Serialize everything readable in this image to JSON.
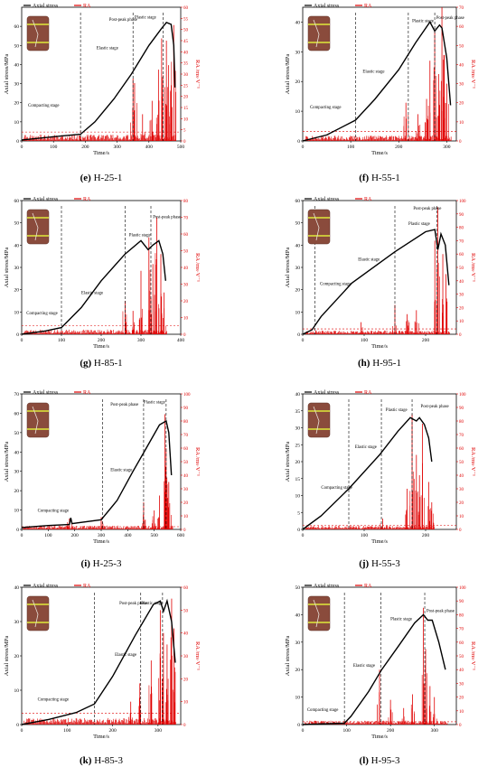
{
  "legend": {
    "stress_label": "Axial stress",
    "ra_label": "RA"
  },
  "colors": {
    "stress": "#000000",
    "ra": "#e00000",
    "threshold": "#e00000",
    "specimen_body": "#8a4b3c",
    "specimen_band": "#c9c23a"
  },
  "chart_data": [
    {
      "id": "e",
      "caption_letter": "(e)",
      "caption_name": "H-25-1",
      "type": "line",
      "xlabel": "Time/s",
      "ylabel": "Axial stress/MPa",
      "y2label": "RA /ms·V⁻¹",
      "xlim": [
        0,
        500
      ],
      "xticks": [
        0,
        100,
        200,
        300,
        400,
        500
      ],
      "ylim": [
        0,
        70
      ],
      "yticks": [
        0,
        10,
        20,
        30,
        40,
        50,
        60
      ],
      "y2lim": [
        0,
        60
      ],
      "y2ticks": [
        0,
        5,
        10,
        15,
        20,
        25,
        30,
        35,
        40,
        45,
        50,
        55,
        60
      ],
      "stress": {
        "name": "Axial stress",
        "x": [
          0,
          60,
          120,
          185,
          230,
          290,
          345,
          400,
          440,
          455,
          470,
          478,
          482
        ],
        "y": [
          0.5,
          1.5,
          2.5,
          3.5,
          10,
          22,
          35,
          50,
          59,
          62,
          61,
          50,
          28
        ]
      },
      "ra": {
        "name": "RA",
        "x_start": 5,
        "x_end": 485,
        "base": 1.5,
        "spikes": [
          [
            350,
            28
          ],
          [
            355,
            26
          ],
          [
            410,
            18
          ],
          [
            440,
            46
          ],
          [
            455,
            45
          ],
          [
            462,
            34
          ],
          [
            470,
            25
          ],
          [
            478,
            52
          ],
          [
            430,
            32
          ],
          [
            380,
            12
          ]
        ]
      },
      "threshold": 4,
      "dividers": [
        185,
        350,
        445
      ],
      "stages": [
        {
          "label": "Compacting stage",
          "x": 20,
          "y": 18
        },
        {
          "label": "Elastic stage",
          "x": 235,
          "y": 48
        },
        {
          "label": "Plastic stage",
          "x": 355,
          "y": 64
        },
        {
          "label": "Post-peak phase",
          "x": 275,
          "y": 63
        }
      ]
    },
    {
      "id": "f",
      "caption_letter": "(f)",
      "caption_name": "H-55-1",
      "type": "line",
      "xlabel": "Time/s",
      "ylabel": "Axial stress/MPa",
      "y2label": "RA /ms·V⁻¹",
      "xlim": [
        0,
        320
      ],
      "xticks": [
        0,
        100,
        200,
        300
      ],
      "ylim": [
        0,
        45
      ],
      "yticks": [
        0,
        10,
        20,
        30,
        40
      ],
      "y2lim": [
        0,
        70
      ],
      "y2ticks": [
        0,
        10,
        20,
        30,
        40,
        50,
        60,
        70
      ],
      "stress": {
        "name": "Axial stress",
        "x": [
          0,
          50,
          110,
          150,
          200,
          235,
          265,
          275,
          285,
          290,
          300,
          308
        ],
        "y": [
          0,
          2,
          7,
          14,
          24,
          33,
          40,
          37,
          39,
          38,
          28,
          12
        ]
      },
      "ra": {
        "name": "RA",
        "x_start": 5,
        "x_end": 310,
        "base": 1.5,
        "spikes": [
          [
            215,
            20
          ],
          [
            240,
            14
          ],
          [
            265,
            42
          ],
          [
            275,
            58
          ],
          [
            283,
            35
          ],
          [
            290,
            70
          ],
          [
            295,
            45
          ],
          [
            300,
            30
          ],
          [
            258,
            22
          ]
        ]
      },
      "threshold": 5,
      "dividers": [
        110,
        220,
        275
      ],
      "stages": [
        {
          "label": "Compacting stage",
          "x": 15,
          "y": 11
        },
        {
          "label": "Elastic stage",
          "x": 125,
          "y": 23
        },
        {
          "label": "Plastic stage",
          "x": 228,
          "y": 40
        },
        {
          "label": "Post-peak phase",
          "x": 278,
          "y": 41
        }
      ]
    },
    {
      "id": "g",
      "caption_letter": "(g)",
      "caption_name": "H-85-1",
      "type": "line",
      "xlabel": "Time/s",
      "ylabel": "Axial stress/MPa",
      "y2label": "RA /ms·V⁻¹",
      "xlim": [
        0,
        400
      ],
      "xticks": [
        0,
        100,
        200,
        300,
        400
      ],
      "ylim": [
        0,
        60
      ],
      "yticks": [
        0,
        10,
        20,
        30,
        40,
        50,
        60
      ],
      "y2lim": [
        0,
        80
      ],
      "y2ticks": [
        0,
        10,
        20,
        30,
        40,
        50,
        60,
        70,
        80
      ],
      "stress": {
        "name": "Axial stress",
        "x": [
          0,
          60,
          100,
          150,
          200,
          260,
          300,
          318,
          330,
          345,
          355,
          362
        ],
        "y": [
          0,
          1.5,
          3,
          12,
          24,
          36,
          42,
          38,
          40,
          42,
          36,
          24
        ]
      },
      "ra": {
        "name": "RA",
        "x_start": 5,
        "x_end": 365,
        "base": 1.5,
        "spikes": [
          [
            260,
            20
          ],
          [
            300,
            38
          ],
          [
            320,
            58
          ],
          [
            330,
            42
          ],
          [
            340,
            70
          ],
          [
            350,
            48
          ],
          [
            358,
            25
          ],
          [
            280,
            14
          ]
        ]
      },
      "threshold": 5,
      "dividers": [
        100,
        260,
        325
      ],
      "stages": [
        {
          "label": "Compacting stage",
          "x": 12,
          "y": 9
        },
        {
          "label": "Elastic stage",
          "x": 150,
          "y": 18
        },
        {
          "label": "Plastic stage",
          "x": 270,
          "y": 44
        },
        {
          "label": "Post-peak phase",
          "x": 330,
          "y": 52
        }
      ]
    },
    {
      "id": "h",
      "caption_letter": "(h)",
      "caption_name": "H-95-1",
      "type": "line",
      "xlabel": "Time/s",
      "ylabel": "Axial stress/MPa",
      "y2label": "RA /ms·V⁻¹",
      "xlim": [
        0,
        250
      ],
      "xticks": [
        0,
        100,
        200
      ],
      "ylim": [
        0,
        60
      ],
      "yticks": [
        0,
        10,
        20,
        30,
        40,
        50,
        60
      ],
      "y2lim": [
        0,
        100
      ],
      "y2ticks": [
        0,
        10,
        20,
        30,
        40,
        50,
        60,
        70,
        80,
        90,
        100
      ],
      "stress": {
        "name": "Axial stress",
        "x": [
          0,
          15,
          30,
          80,
          150,
          200,
          215,
          220,
          225,
          232,
          238
        ],
        "y": [
          0,
          2,
          8,
          23,
          37,
          46,
          47,
          38,
          45,
          40,
          22
        ]
      },
      "ra": {
        "name": "RA",
        "x_start": 5,
        "x_end": 240,
        "base": 1.5,
        "spikes": [
          [
            150,
            22
          ],
          [
            170,
            15
          ],
          [
            215,
            70
          ],
          [
            220,
            95
          ],
          [
            228,
            60
          ],
          [
            233,
            45
          ],
          [
            185,
            18
          ],
          [
            95,
            9
          ]
        ]
      },
      "threshold": 4,
      "dividers": [
        20,
        150,
        218
      ],
      "stages": [
        {
          "label": "Compacting stage",
          "x": 28,
          "y": 22
        },
        {
          "label": "Elastic stage",
          "x": 90,
          "y": 33
        },
        {
          "label": "Plastic stage",
          "x": 172,
          "y": 49
        },
        {
          "label": "Post-peak phase",
          "x": 180,
          "y": 56
        }
      ]
    },
    {
      "id": "i",
      "caption_letter": "(i)",
      "caption_name": "H-25-3",
      "type": "line",
      "xlabel": "Time/s",
      "ylabel": "Axial stress/MPa",
      "y2label": "RA /ms·V⁻¹",
      "xlim": [
        0,
        600
      ],
      "xticks": [
        0,
        100,
        200,
        300,
        400,
        500,
        600
      ],
      "ylim": [
        0,
        70
      ],
      "yticks": [
        0,
        10,
        20,
        30,
        40,
        50,
        60,
        70
      ],
      "y2lim": [
        0,
        100
      ],
      "y2ticks": [
        0,
        10,
        20,
        30,
        40,
        50,
        60,
        70,
        80,
        90,
        100
      ],
      "stress": {
        "name": "Axial stress",
        "x": [
          0,
          100,
          180,
          185,
          190,
          300,
          360,
          420,
          470,
          520,
          545,
          555,
          565
        ],
        "y": [
          1,
          2,
          2.5,
          6,
          3,
          5,
          15,
          30,
          42,
          54,
          56,
          50,
          28
        ]
      },
      "ra": {
        "name": "RA",
        "x_start": 5,
        "x_end": 570,
        "base": 1.5,
        "spikes": [
          [
            180,
            8
          ],
          [
            300,
            9
          ],
          [
            460,
            20
          ],
          [
            520,
            25
          ],
          [
            540,
            85
          ],
          [
            545,
            60
          ],
          [
            555,
            35
          ],
          [
            500,
            14
          ]
        ]
      },
      "threshold": 2,
      "dividers": [
        305,
        460,
        545
      ],
      "stages": [
        {
          "label": "Compacting stage",
          "x": 60,
          "y": 9
        },
        {
          "label": "Elastic stage",
          "x": 335,
          "y": 30
        },
        {
          "label": "Plastic stage",
          "x": 460,
          "y": 65
        },
        {
          "label": "Post-peak phase",
          "x": 335,
          "y": 64
        }
      ]
    },
    {
      "id": "j",
      "caption_letter": "(j)",
      "caption_name": "H-55-3",
      "type": "line",
      "xlabel": "Time/s",
      "ylabel": "Axial stress/MPa",
      "y2label": "RA /ms·V⁻¹",
      "xlim": [
        0,
        250
      ],
      "xticks": [
        0,
        100,
        200
      ],
      "ylim": [
        0,
        40
      ],
      "yticks": [
        0,
        5,
        10,
        15,
        20,
        25,
        30,
        35,
        40
      ],
      "y2lim": [
        0,
        100
      ],
      "y2ticks": [
        0,
        10,
        20,
        30,
        40,
        50,
        60,
        70,
        80,
        90,
        100
      ],
      "stress": {
        "name": "Axial stress",
        "x": [
          0,
          30,
          75,
          125,
          155,
          175,
          185,
          190,
          198,
          205,
          210
        ],
        "y": [
          0,
          4,
          12,
          22,
          29,
          33,
          32,
          33,
          31,
          27,
          20
        ]
      },
      "ra": {
        "name": "RA",
        "x_start": 5,
        "x_end": 215,
        "base": 1.5,
        "spikes": [
          [
            170,
            30
          ],
          [
            178,
            85
          ],
          [
            185,
            55
          ],
          [
            190,
            40
          ],
          [
            195,
            78
          ],
          [
            205,
            35
          ],
          [
            210,
            20
          ],
          [
            130,
            8
          ]
        ]
      },
      "threshold": 3,
      "dividers": [
        75,
        128,
        178
      ],
      "stages": [
        {
          "label": "Compacting stage",
          "x": 30,
          "y": 12
        },
        {
          "label": "Elastic stage",
          "x": 85,
          "y": 24
        },
        {
          "label": "Plastic stage",
          "x": 135,
          "y": 35
        },
        {
          "label": "Post-peak phase",
          "x": 192,
          "y": 36
        }
      ]
    },
    {
      "id": "k",
      "caption_letter": "(k)",
      "caption_name": "H-85-3",
      "type": "line",
      "xlabel": "Time/s",
      "ylabel": "Axial stress/MPa",
      "y2label": "RA /ms·V⁻¹",
      "xlim": [
        0,
        350
      ],
      "xticks": [
        0,
        100,
        200,
        300
      ],
      "ylim": [
        0,
        40
      ],
      "yticks": [
        0,
        10,
        20,
        30,
        40
      ],
      "y2lim": [
        0,
        60
      ],
      "y2ticks": [
        0,
        10,
        20,
        30,
        40,
        50,
        60
      ],
      "stress": {
        "name": "Axial stress",
        "x": [
          0,
          60,
          120,
          160,
          200,
          250,
          290,
          305,
          312,
          320,
          330,
          338
        ],
        "y": [
          0,
          1.5,
          3.5,
          6,
          14,
          26,
          35,
          36,
          33,
          36,
          30,
          18
        ]
      },
      "ra": {
        "name": "RA",
        "x_start": 5,
        "x_end": 340,
        "base": 1.5,
        "spikes": [
          [
            260,
            18
          ],
          [
            285,
            28
          ],
          [
            305,
            50
          ],
          [
            312,
            40
          ],
          [
            320,
            35
          ],
          [
            330,
            55
          ],
          [
            335,
            42
          ],
          [
            240,
            10
          ]
        ]
      },
      "threshold": 5,
      "dividers": [
        160,
        262,
        310
      ],
      "stages": [
        {
          "label": "Compacting stage",
          "x": 35,
          "y": 7
        },
        {
          "label": "Elastic stage",
          "x": 205,
          "y": 20
        },
        {
          "label": "Plastic stage",
          "x": 263,
          "y": 35
        },
        {
          "label": "Post-peak phase",
          "x": 215,
          "y": 35
        }
      ]
    },
    {
      "id": "l",
      "caption_letter": "(l)",
      "caption_name": "H-95-3",
      "type": "line",
      "xlabel": "Time/s",
      "ylabel": "Axial stress/MPa",
      "y2label": "RA /ms·V⁻¹",
      "xlim": [
        0,
        350
      ],
      "xticks": [
        0,
        100,
        200,
        300
      ],
      "ylim": [
        0,
        50
      ],
      "yticks": [
        0,
        10,
        20,
        30,
        40,
        50
      ],
      "y2lim": [
        0,
        100
      ],
      "y2ticks": [
        0,
        10,
        20,
        30,
        40,
        50,
        60,
        70,
        80,
        90,
        100
      ],
      "stress": {
        "name": "Axial stress",
        "x": [
          0,
          95,
          110,
          150,
          180,
          220,
          255,
          275,
          285,
          295,
          310,
          325
        ],
        "y": [
          0,
          0.5,
          3,
          12,
          20,
          29,
          37,
          40,
          38,
          38,
          30,
          20
        ]
      },
      "ra": {
        "name": "RA",
        "x_start": 5,
        "x_end": 330,
        "base": 1.5,
        "spikes": [
          [
            175,
            40
          ],
          [
            200,
            18
          ],
          [
            250,
            22
          ],
          [
            275,
            85
          ],
          [
            280,
            55
          ],
          [
            290,
            28
          ],
          [
            300,
            20
          ],
          [
            230,
            12
          ]
        ]
      },
      "threshold": 2,
      "dividers": [
        95,
        178,
        278
      ],
      "stages": [
        {
          "label": "Compacting stage",
          "x": 10,
          "y": 5
        },
        {
          "label": "Elastic stage",
          "x": 115,
          "y": 21
        },
        {
          "label": "Plastic stage",
          "x": 200,
          "y": 38
        },
        {
          "label": "Post-peak phase",
          "x": 282,
          "y": 41
        }
      ]
    }
  ]
}
